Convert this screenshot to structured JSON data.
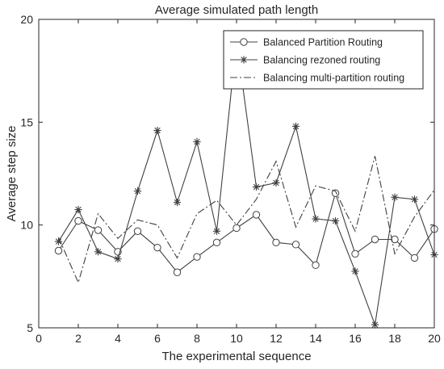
{
  "chart_data": {
    "type": "line",
    "title": "Average simulated path length",
    "xlabel": "The experimental sequence",
    "ylabel": "Average step size",
    "xlim": [
      0,
      20
    ],
    "ylim": [
      5,
      20
    ],
    "xticks": [
      0,
      2,
      4,
      6,
      8,
      10,
      12,
      14,
      16,
      18,
      20
    ],
    "yticks": [
      5,
      10,
      15,
      20
    ],
    "grid": false,
    "legend_position": "top-right",
    "x": [
      1,
      2,
      3,
      4,
      5,
      6,
      7,
      8,
      9,
      10,
      11,
      12,
      13,
      14,
      15,
      16,
      17,
      18,
      19,
      20
    ],
    "series": [
      {
        "name": "Balanced Partition Routing",
        "style": "solid",
        "marker": "circle",
        "color": "#404040",
        "values": [
          8.75,
          10.2,
          9.75,
          8.7,
          9.7,
          8.9,
          7.7,
          8.45,
          9.15,
          9.85,
          10.5,
          9.15,
          9.05,
          8.05,
          11.55,
          8.6,
          9.3,
          9.3,
          8.4,
          9.8
        ]
      },
      {
        "name": "Balancing rezoned routing",
        "style": "solid",
        "marker": "star",
        "color": "#404040",
        "values": [
          9.2,
          10.75,
          8.7,
          8.35,
          11.65,
          14.6,
          11.1,
          14.05,
          9.7,
          19.0,
          11.85,
          12.05,
          14.8,
          10.3,
          10.2,
          7.75,
          5.15,
          11.35,
          11.25,
          8.55
        ]
      },
      {
        "name": "Balancing multi-partition routing",
        "style": "dashdot",
        "marker": "none",
        "color": "#404040",
        "values": [
          9.4,
          7.2,
          10.55,
          9.35,
          10.25,
          10.0,
          8.4,
          10.55,
          11.2,
          10.0,
          11.25,
          13.1,
          9.9,
          11.9,
          11.65,
          9.7,
          13.35,
          8.6,
          10.4,
          11.7
        ]
      }
    ]
  }
}
